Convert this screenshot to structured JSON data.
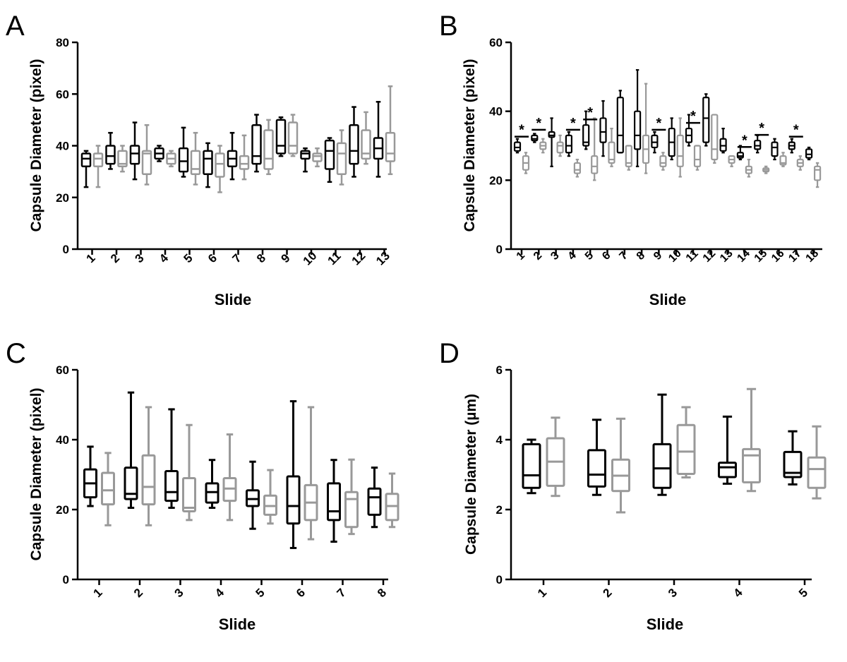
{
  "colors": {
    "series_a": "#000000",
    "series_b": "#999999"
  },
  "chart_data": [
    {
      "panel": "A",
      "type": "boxplot",
      "xlabel": "Slide",
      "ylabel": "Capsule Diameter (pixel)",
      "ylim": [
        0,
        80
      ],
      "yticks": [
        "0",
        "20",
        "40",
        "60",
        "80"
      ],
      "ytick_values": [
        0,
        20,
        40,
        60,
        80
      ],
      "categories": [
        "1",
        "2",
        "3",
        "4",
        "5",
        "6",
        "7",
        "8",
        "9",
        "10",
        "11",
        "12",
        "13"
      ],
      "series": [
        {
          "name": "black",
          "boxes": [
            [
              24,
              32,
              35,
              37,
              38
            ],
            [
              31,
              33,
              36,
              40,
              45
            ],
            [
              27,
              33,
              37,
              40,
              49
            ],
            [
              34,
              35,
              37,
              39,
              40
            ],
            [
              28,
              30,
              34,
              39,
              47
            ],
            [
              24,
              29,
              35,
              38,
              41
            ],
            [
              27,
              32,
              35,
              38,
              45
            ],
            [
              30,
              33,
              36,
              48,
              52
            ],
            [
              36,
              37,
              40,
              50,
              51
            ],
            [
              30,
              35,
              37,
              38,
              39
            ],
            [
              26,
              31,
              38,
              42,
              43
            ],
            [
              28,
              33,
              38,
              48,
              55
            ],
            [
              28,
              35,
              39,
              43,
              57
            ]
          ]
        },
        {
          "name": "gray",
          "boxes": [
            [
              24,
              32,
              35,
              37,
              40
            ],
            [
              30,
              32,
              33,
              38,
              40
            ],
            [
              25,
              29,
              37,
              38,
              48
            ],
            [
              32,
              33,
              35,
              37,
              38
            ],
            [
              25,
              29,
              31,
              38,
              45
            ],
            [
              22,
              28,
              33,
              37,
              40
            ],
            [
              27,
              31,
              33,
              36,
              44
            ],
            [
              29,
              31,
              35,
              46,
              50
            ],
            [
              36,
              37,
              40,
              49,
              52
            ],
            [
              32,
              34,
              36,
              37,
              39
            ],
            [
              25,
              29,
              37,
              41,
              46
            ],
            [
              33,
              35,
              37,
              46,
              53
            ],
            [
              29,
              34,
              37,
              45,
              63
            ]
          ]
        }
      ]
    },
    {
      "panel": "B",
      "type": "boxplot",
      "xlabel": "Slide",
      "ylabel": "Capsule Diameter (pixel)",
      "ylim": [
        0,
        60
      ],
      "yticks": [
        "0",
        "20",
        "40",
        "60"
      ],
      "ytick_values": [
        0,
        20,
        40,
        60
      ],
      "categories": [
        "1",
        "2",
        "3",
        "4",
        "5",
        "6",
        "7",
        "8",
        "9",
        "10",
        "11",
        "12",
        "13",
        "14",
        "15",
        "16",
        "17",
        "18"
      ],
      "significant_slides": [
        "1",
        "2",
        "4",
        "5",
        "9",
        "11",
        "14",
        "15",
        "17"
      ],
      "annotation_symbol": "*",
      "series": [
        {
          "name": "black",
          "boxes": [
            [
              28,
              28.5,
              29.5,
              31,
              32
            ],
            [
              31,
              31.5,
              32,
              33,
              33.5
            ],
            [
              24,
              32.5,
              33,
              34,
              38
            ],
            [
              27,
              28,
              30,
              33,
              34
            ],
            [
              29,
              30,
              31,
              36,
              40
            ],
            [
              27,
              31,
              34,
              38,
              43
            ],
            [
              28,
              28,
              33,
              44,
              46
            ],
            [
              24,
              29,
              33,
              40,
              52
            ],
            [
              28,
              29.5,
              31,
              33,
              34
            ],
            [
              26,
              27,
              31,
              35,
              38
            ],
            [
              30,
              31,
              33,
              35,
              39
            ],
            [
              30,
              31,
              38,
              44,
              45
            ],
            [
              28,
              28.5,
              30,
              32,
              35
            ],
            [
              26,
              26.5,
              27,
              28,
              30
            ],
            [
              28,
              29,
              30,
              31.5,
              33
            ],
            [
              26,
              27,
              29.5,
              31,
              32
            ],
            [
              28,
              29,
              30,
              31,
              32
            ],
            [
              26,
              26.5,
              27.5,
              29,
              29.5
            ]
          ]
        },
        {
          "name": "gray",
          "boxes": [
            [
              22,
              23,
              25,
              27,
              28
            ],
            [
              28,
              29,
              30,
              31,
              32
            ],
            [
              27,
              28,
              30,
              31,
              33
            ],
            [
              21,
              22,
              23,
              25,
              26
            ],
            [
              20,
              22,
              24,
              27,
              38
            ],
            [
              24,
              25,
              26,
              31,
              35
            ],
            [
              23,
              24,
              25,
              30,
              30
            ],
            [
              22,
              25,
              29,
              33,
              48
            ],
            [
              23,
              24,
              25,
              27,
              28
            ],
            [
              21,
              24,
              27,
              33,
              38
            ],
            [
              23,
              24,
              26,
              30,
              30
            ],
            [
              25,
              26,
              29,
              39,
              39
            ],
            [
              24,
              25,
              26,
              27,
              27
            ],
            [
              21,
              22,
              23,
              24,
              26
            ],
            [
              22,
              22.5,
              23,
              23.5,
              24
            ],
            [
              24,
              24.5,
              25,
              27,
              28
            ],
            [
              23,
              24,
              25,
              26,
              27
            ],
            [
              18,
              20,
              23,
              24,
              25
            ]
          ]
        }
      ]
    },
    {
      "panel": "C",
      "type": "boxplot",
      "xlabel": "Slide",
      "ylabel": "Capsule Diameter (pixel)",
      "ylim": [
        0,
        60
      ],
      "yticks": [
        "0",
        "20",
        "40",
        "60"
      ],
      "ytick_values": [
        0,
        20,
        40,
        60
      ],
      "categories": [
        "1",
        "2",
        "3",
        "4",
        "5",
        "6",
        "7",
        "8"
      ],
      "series": [
        {
          "name": "black",
          "boxes": [
            [
              21,
              23.5,
              27.5,
              31.5,
              38
            ],
            [
              20.5,
              23,
              24.5,
              32,
              53.5
            ],
            [
              20.5,
              22.5,
              25,
              31,
              48.7
            ],
            [
              20.5,
              22,
              25,
              27.5,
              34.2
            ],
            [
              14.5,
              21,
              23,
              25.5,
              33.7
            ],
            [
              9,
              16,
              21,
              29.5,
              51
            ],
            [
              10.8,
              17,
              19.5,
              27.5,
              34.2
            ],
            [
              15,
              18.5,
              23.5,
              26,
              32
            ]
          ]
        },
        {
          "name": "gray",
          "boxes": [
            [
              15.5,
              21.5,
              25.5,
              30.5,
              36.2
            ],
            [
              15.5,
              21.5,
              26.5,
              35.5,
              49.3
            ],
            [
              17,
              19.5,
              20.5,
              29,
              44.2
            ],
            [
              17,
              22.5,
              26,
              29,
              41.5
            ],
            [
              16,
              18.5,
              21,
              24,
              31.3
            ],
            [
              11.5,
              17,
              22,
              27,
              49.3
            ],
            [
              13,
              15,
              23,
              25,
              34.3
            ],
            [
              15,
              17,
              21,
              24.5,
              30.3
            ]
          ]
        }
      ]
    },
    {
      "panel": "D",
      "type": "boxplot",
      "xlabel": "Slide",
      "ylabel": "Capsule Diameter (µm)",
      "ylim": [
        0,
        6
      ],
      "yticks": [
        "0",
        "2",
        "4",
        "6"
      ],
      "ytick_values": [
        0,
        2,
        4,
        6
      ],
      "categories": [
        "1",
        "2",
        "3",
        "4",
        "5"
      ],
      "series": [
        {
          "name": "black",
          "boxes": [
            [
              2.47,
              2.62,
              2.98,
              3.87,
              4.0
            ],
            [
              2.42,
              2.66,
              3.0,
              3.7,
              4.57
            ],
            [
              2.42,
              2.62,
              3.18,
              3.87,
              5.29
            ],
            [
              2.74,
              2.93,
              3.21,
              3.34,
              4.66
            ],
            [
              2.72,
              2.93,
              3.05,
              3.65,
              4.24
            ]
          ]
        },
        {
          "name": "gray",
          "boxes": [
            [
              2.39,
              2.68,
              3.37,
              4.04,
              4.63
            ],
            [
              1.92,
              2.53,
              2.97,
              3.43,
              4.6
            ],
            [
              2.92,
              3.02,
              3.66,
              4.42,
              4.93
            ],
            [
              2.53,
              2.78,
              3.55,
              3.73,
              5.45
            ],
            [
              2.32,
              2.62,
              3.16,
              3.49,
              4.38
            ]
          ]
        }
      ]
    }
  ]
}
